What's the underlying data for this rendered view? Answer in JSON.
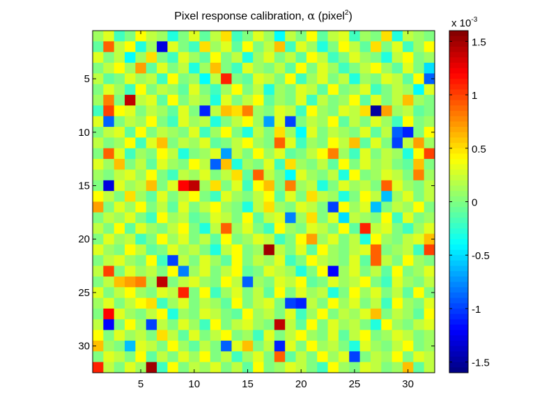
{
  "chart_data": {
    "type": "heatmap",
    "title_main": "Pixel response calibration, ",
    "title_symbol": "α",
    "title_unit": " (pixel",
    "title_sup": "2",
    "title_close": ")",
    "rows": 32,
    "cols": 32,
    "x_ticks": [
      5,
      10,
      15,
      20,
      25,
      30
    ],
    "y_ticks": [
      5,
      10,
      15,
      20,
      25,
      30
    ],
    "xlim": [
      0.5,
      32.5
    ],
    "ylim": [
      0.5,
      32.5
    ],
    "clim": [
      -0.0016,
      0.0016
    ],
    "colorbar": {
      "ticks": [
        {
          "value": 1.5,
          "label": "1.5"
        },
        {
          "value": 1.0,
          "label": "1"
        },
        {
          "value": 0.5,
          "label": "0.5"
        },
        {
          "value": 0.0,
          "label": "0"
        },
        {
          "value": -0.5,
          "label": "-0.5"
        },
        {
          "value": -1.0,
          "label": "-1"
        },
        {
          "value": -1.5,
          "label": "-1.5"
        }
      ],
      "multiplier_prefix": "x 10",
      "multiplier_exp": "-3",
      "range_scaled": [
        -1.6,
        1.6
      ]
    },
    "colormap": "jet",
    "approx_values_1e-3": [
      [
        0.1,
        0.3,
        -0.2,
        0.0,
        0.4,
        0.2,
        0.1,
        -0.3,
        0.0,
        0.3,
        -0.1,
        0.2,
        0.5,
        -0.2,
        0.0,
        0.3,
        0.1,
        -0.4,
        0.2,
        0.0,
        0.4,
        -0.1,
        0.2,
        0.3,
        -0.2,
        0.1,
        0.0,
        0.5,
        -0.3,
        0.2,
        0.1,
        0.0
      ],
      [
        -0.1,
        0.9,
        0.2,
        0.4,
        -0.3,
        0.1,
        -1.3,
        0.3,
        0.0,
        -0.2,
        0.5,
        0.1,
        0.3,
        -0.1,
        0.4,
        0.0,
        0.2,
        0.6,
        -0.2,
        0.3,
        0.1,
        -0.3,
        0.0,
        0.4,
        0.2,
        -0.1,
        0.5,
        0.0,
        0.3,
        -0.2,
        0.1,
        0.4
      ],
      [
        0.3,
        0.0,
        0.2,
        -0.4,
        0.1,
        0.5,
        0.0,
        -0.2,
        0.3,
        0.1,
        -0.1,
        0.4,
        0.0,
        0.2,
        -0.3,
        0.1,
        0.3,
        0.0,
        0.2,
        -0.1,
        0.4,
        0.2,
        -0.2,
        0.0,
        0.3,
        0.1,
        0.0,
        -0.3,
        0.2,
        0.4,
        0.0,
        0.1
      ],
      [
        0.0,
        0.2,
        0.4,
        0.1,
        0.7,
        -0.1,
        0.3,
        0.0,
        0.2,
        -0.3,
        0.1,
        0.6,
        0.0,
        -0.2,
        0.3,
        0.1,
        0.0,
        0.2,
        -0.1,
        0.4,
        0.0,
        0.3,
        0.1,
        -0.2,
        0.0,
        0.2,
        0.4,
        0.1,
        -0.1,
        0.3,
        0.0,
        -0.5
      ],
      [
        0.2,
        -0.1,
        0.0,
        0.3,
        0.1,
        0.2,
        -0.2,
        0.4,
        0.0,
        0.1,
        -0.4,
        0.2,
        1.1,
        0.0,
        -0.1,
        0.3,
        0.2,
        0.0,
        0.4,
        -0.2,
        0.1,
        0.3,
        0.0,
        0.2,
        -0.3,
        0.1,
        0.0,
        0.3,
        0.2,
        -0.1,
        0.4,
        -0.9
      ],
      [
        0.0,
        0.3,
        0.1,
        -0.2,
        0.4,
        0.0,
        0.2,
        0.1,
        -0.1,
        0.3,
        0.0,
        -0.2,
        0.1,
        0.4,
        0.0,
        0.2,
        -0.3,
        0.1,
        0.0,
        0.3,
        0.2,
        -0.1,
        0.4,
        0.0,
        0.1,
        0.3,
        -0.2,
        0.0,
        0.2,
        0.1,
        -0.4,
        0.3
      ],
      [
        0.1,
        0.8,
        0.0,
        1.4,
        0.2,
        0.3,
        -0.1,
        0.4,
        0.0,
        0.2,
        0.1,
        -0.3,
        0.3,
        0.0,
        0.2,
        0.4,
        -0.1,
        0.1,
        0.0,
        0.3,
        -0.2,
        0.2,
        0.0,
        0.1,
        0.4,
        -0.1,
        0.3,
        0.0,
        0.2,
        0.6,
        0.1,
        0.0
      ],
      [
        -0.2,
        1.0,
        0.4,
        0.3,
        0.0,
        0.2,
        0.1,
        -0.1,
        0.3,
        0.0,
        -1.1,
        0.2,
        0.6,
        0.5,
        0.8,
        0.1,
        0.0,
        0.3,
        0.2,
        -0.2,
        0.4,
        0.1,
        0.0,
        0.3,
        0.2,
        0.5,
        -1.5,
        0.7,
        0.1,
        0.2,
        -0.1,
        0.0
      ],
      [
        0.3,
        -0.9,
        0.0,
        0.2,
        0.1,
        0.4,
        0.0,
        -0.2,
        0.3,
        0.1,
        0.2,
        -0.3,
        0.0,
        0.2,
        0.4,
        0.1,
        -0.7,
        0.3,
        -1.0,
        0.0,
        0.2,
        0.1,
        0.4,
        -0.1,
        0.2,
        0.0,
        0.3,
        0.1,
        -0.2,
        0.4,
        0.0,
        0.1
      ],
      [
        0.0,
        0.2,
        0.3,
        -0.1,
        0.4,
        0.0,
        0.2,
        0.1,
        0.0,
        0.3,
        -0.2,
        0.1,
        0.4,
        0.0,
        -0.3,
        0.2,
        0.0,
        0.5,
        0.1,
        -0.4,
        0.3,
        0.0,
        0.2,
        0.1,
        0.0,
        0.3,
        -0.1,
        0.2,
        -0.9,
        -1.1,
        0.0,
        0.4
      ],
      [
        0.2,
        0.0,
        0.1,
        0.4,
        -0.2,
        0.3,
        0.6,
        0.0,
        0.2,
        0.1,
        0.3,
        -0.1,
        0.0,
        0.2,
        0.4,
        0.1,
        0.0,
        0.9,
        0.3,
        -0.2,
        0.1,
        0.0,
        0.4,
        0.2,
        0.6,
        -0.1,
        0.3,
        0.0,
        -1.0,
        0.2,
        0.7,
        0.1
      ],
      [
        0.0,
        0.9,
        0.3,
        -0.2,
        0.1,
        0.0,
        0.4,
        0.2,
        -0.3,
        0.0,
        0.1,
        0.3,
        -0.7,
        0.2,
        0.0,
        0.4,
        0.1,
        0.3,
        -0.1,
        0.0,
        0.2,
        0.4,
        0.8,
        0.1,
        -0.2,
        0.3,
        0.0,
        0.2,
        0.1,
        -0.3,
        0.4,
        1.0
      ],
      [
        0.3,
        0.1,
        0.6,
        0.0,
        0.2,
        -0.1,
        0.3,
        0.1,
        0.0,
        0.4,
        0.2,
        -0.9,
        0.6,
        -0.3,
        0.1,
        0.0,
        0.3,
        -0.2,
        0.5,
        0.1,
        0.0,
        0.2,
        -0.1,
        0.4,
        0.0,
        0.3,
        0.1,
        0.2,
        0.0,
        -0.1,
        0.6,
        0.0
      ],
      [
        0.1,
        0.0,
        0.2,
        0.3,
        0.1,
        0.4,
        0.0,
        -0.2,
        0.2,
        0.1,
        0.3,
        0.0,
        0.2,
        0.5,
        -0.1,
        0.9,
        0.2,
        0.0,
        -0.4,
        0.3,
        0.1,
        0.0,
        0.2,
        -0.3,
        0.4,
        0.0,
        0.1,
        0.3,
        0.2,
        0.0,
        0.8,
        0.1
      ],
      [
        0.0,
        -1.3,
        0.3,
        0.1,
        0.2,
        0.6,
        0.0,
        0.3,
        1.2,
        1.4,
        0.1,
        0.5,
        0.0,
        0.3,
        -0.2,
        0.4,
        0.6,
        0.0,
        0.8,
        0.1,
        0.2,
        -0.3,
        0.0,
        0.3,
        0.1,
        0.2,
        0.0,
        0.9,
        0.3,
        0.1,
        0.0,
        0.2
      ],
      [
        0.4,
        0.2,
        0.0,
        0.5,
        0.1,
        -0.1,
        0.3,
        0.0,
        0.2,
        0.4,
        0.0,
        -0.2,
        0.3,
        0.1,
        0.0,
        0.2,
        0.4,
        -0.1,
        0.3,
        0.0,
        0.5,
        0.2,
        0.1,
        -0.3,
        0.0,
        0.4,
        0.2,
        -0.6,
        0.1,
        0.3,
        0.0,
        0.2
      ],
      [
        0.7,
        0.0,
        0.3,
        0.1,
        0.4,
        0.0,
        0.2,
        -0.1,
        0.3,
        0.0,
        0.2,
        0.4,
        0.1,
        0.0,
        -0.3,
        0.2,
        0.5,
        0.1,
        0.0,
        0.3,
        0.2,
        0.0,
        -1.0,
        0.4,
        0.1,
        0.3,
        -0.6,
        0.0,
        0.2,
        0.1,
        0.4,
        0.0
      ],
      [
        0.0,
        0.2,
        0.1,
        0.3,
        0.0,
        -0.2,
        0.4,
        0.1,
        0.2,
        -0.1,
        0.0,
        0.3,
        0.2,
        0.0,
        0.4,
        -0.1,
        0.2,
        0.3,
        -0.8,
        0.1,
        0.5,
        0.0,
        0.3,
        -0.5,
        0.2,
        0.1,
        0.0,
        0.4,
        -0.2,
        0.3,
        0.0,
        0.1
      ],
      [
        0.2,
        0.0,
        0.4,
        -0.1,
        0.3,
        0.1,
        0.0,
        0.2,
        0.4,
        0.0,
        -0.3,
        0.2,
        0.9,
        0.1,
        0.3,
        0.0,
        -0.2,
        0.4,
        0.1,
        0.0,
        0.3,
        0.2,
        0.0,
        0.4,
        -0.1,
        1.1,
        0.2,
        0.3,
        0.0,
        -0.2,
        0.1,
        0.3
      ],
      [
        0.0,
        0.3,
        0.1,
        0.2,
        -0.2,
        0.0,
        0.4,
        0.1,
        0.3,
        0.0,
        0.2,
        -0.1,
        0.4,
        0.0,
        0.1,
        0.3,
        0.2,
        -0.2,
        0.0,
        0.4,
        0.7,
        0.1,
        0.3,
        0.0,
        0.2,
        -0.3,
        0.4,
        0.1,
        0.0,
        0.2,
        0.3,
        0.6
      ],
      [
        0.3,
        0.1,
        0.0,
        0.4,
        0.2,
        -0.1,
        0.0,
        0.3,
        0.1,
        0.2,
        0.0,
        -0.3,
        0.2,
        0.4,
        0.0,
        0.1,
        1.5,
        0.2,
        0.0,
        0.3,
        -0.1,
        0.4,
        0.1,
        0.0,
        0.2,
        0.3,
        0.9,
        0.0,
        0.1,
        0.2,
        -0.2,
        1.0
      ],
      [
        0.0,
        0.2,
        0.3,
        0.1,
        0.0,
        0.4,
        -0.2,
        -1.0,
        0.2,
        0.0,
        0.3,
        0.1,
        -0.1,
        0.4,
        0.0,
        0.2,
        0.1,
        0.3,
        -0.2,
        0.0,
        0.4,
        0.2,
        0.1,
        0.0,
        0.3,
        -0.1,
        0.9,
        0.2,
        0.0,
        0.4,
        0.1,
        0.0
      ],
      [
        0.2,
        1.0,
        0.0,
        0.3,
        0.1,
        0.2,
        0.0,
        0.4,
        -0.8,
        0.1,
        0.3,
        0.0,
        0.2,
        0.4,
        -0.1,
        0.0,
        0.3,
        0.2,
        0.1,
        -0.3,
        0.0,
        0.4,
        -1.2,
        0.1,
        0.3,
        0.0,
        0.2,
        -0.1,
        0.4,
        0.0,
        0.1,
        0.3
      ],
      [
        0.0,
        0.2,
        0.6,
        0.7,
        0.8,
        0.1,
        1.4,
        0.0,
        0.2,
        0.3,
        0.1,
        0.0,
        0.4,
        0.2,
        -0.9,
        0.1,
        0.0,
        0.3,
        0.2,
        0.4,
        -0.1,
        0.0,
        0.3,
        0.1,
        0.2,
        0.4,
        0.0,
        -0.2,
        0.3,
        0.1,
        0.0,
        0.2
      ],
      [
        0.3,
        0.0,
        0.2,
        0.4,
        0.1,
        0.0,
        0.3,
        0.2,
        1.1,
        0.0,
        0.4,
        -0.2,
        0.1,
        0.3,
        0.0,
        0.2,
        -0.1,
        0.4,
        0.0,
        0.3,
        0.1,
        0.2,
        -0.3,
        0.0,
        0.4,
        0.1,
        0.3,
        0.0,
        0.2,
        -0.1,
        0.4,
        0.0
      ],
      [
        0.1,
        0.3,
        0.0,
        0.2,
        0.4,
        0.5,
        -0.2,
        0.1,
        0.3,
        0.0,
        0.2,
        0.1,
        -0.1,
        0.4,
        0.0,
        0.2,
        0.3,
        0.0,
        -1.0,
        -1.1,
        0.2,
        0.0,
        0.4,
        0.1,
        0.3,
        0.0,
        0.2,
        -0.2,
        0.4,
        0.1,
        0.0,
        0.3
      ],
      [
        0.0,
        1.2,
        0.3,
        0.1,
        0.0,
        0.2,
        0.4,
        -0.3,
        0.1,
        0.0,
        0.3,
        0.2,
        0.0,
        -0.1,
        0.4,
        0.1,
        0.2,
        0.0,
        0.3,
        -0.2,
        0.1,
        0.4,
        0.0,
        0.2,
        0.1,
        0.3,
        0.6,
        0.0,
        0.2,
        0.1,
        -0.1,
        0.4
      ],
      [
        0.2,
        -1.2,
        0.0,
        0.4,
        0.1,
        -1.0,
        0.2,
        0.0,
        0.3,
        0.1,
        -0.2,
        0.4,
        0.0,
        0.2,
        0.3,
        0.1,
        0.0,
        1.4,
        0.2,
        -0.1,
        0.4,
        0.0,
        0.3,
        0.1,
        0.2,
        0.0,
        -0.3,
        0.4,
        0.1,
        0.0,
        0.2,
        0.3
      ],
      [
        0.4,
        0.0,
        0.3,
        0.1,
        0.2,
        0.0,
        0.5,
        0.2,
        -0.1,
        0.3,
        0.0,
        0.2,
        0.4,
        0.0,
        0.1,
        -0.2,
        0.3,
        0.0,
        0.2,
        0.4,
        0.1,
        0.0,
        0.3,
        -0.1,
        0.2,
        0.4,
        0.0,
        0.1,
        0.3,
        0.2,
        0.0,
        0.1
      ],
      [
        0.6,
        0.1,
        0.0,
        -0.6,
        0.3,
        0.2,
        0.0,
        0.4,
        0.1,
        -0.1,
        0.2,
        0.0,
        -0.9,
        0.3,
        0.6,
        0.0,
        0.2,
        -1.1,
        0.3,
        0.0,
        0.4,
        0.1,
        0.2,
        0.0,
        -0.3,
        0.3,
        0.1,
        0.0,
        0.2,
        0.4,
        0.0,
        0.1
      ],
      [
        0.0,
        0.3,
        0.2,
        0.0,
        0.4,
        -0.1,
        0.2,
        0.0,
        0.3,
        0.1,
        0.4,
        0.0,
        0.2,
        -0.2,
        0.1,
        0.3,
        0.0,
        0.9,
        -0.1,
        0.2,
        0.0,
        0.4,
        0.1,
        0.3,
        -1.0,
        0.0,
        0.2,
        0.1,
        0.4,
        0.0,
        0.3,
        0.2
      ],
      [
        1.1,
        0.2,
        0.0,
        0.3,
        0.1,
        1.5,
        -0.2,
        0.4,
        0.0,
        0.2,
        0.1,
        0.3,
        0.0,
        0.2,
        -0.1,
        0.4,
        0.0,
        0.1,
        0.3,
        0.2,
        0.0,
        -0.2,
        0.4,
        0.1,
        0.0,
        0.3,
        0.2,
        0.0,
        0.1,
        0.6,
        -0.1,
        0.2
      ]
    ]
  }
}
